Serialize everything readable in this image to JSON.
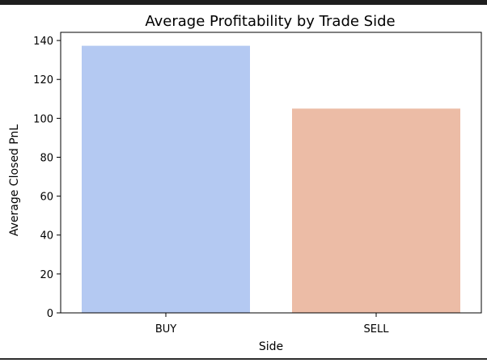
{
  "chart_data": {
    "type": "bar",
    "title": "Average Profitability by Trade Side",
    "xlabel": "Side",
    "ylabel": "Average Closed PnL",
    "categories": [
      "BUY",
      "SELL"
    ],
    "values": [
      137.3,
      105.0
    ],
    "colors": [
      "#b4c9f2",
      "#ecbca6"
    ],
    "ylim": [
      0,
      144.2
    ],
    "yticks": [
      0,
      20,
      40,
      60,
      80,
      100,
      120,
      140
    ],
    "grid": false,
    "legend": "none"
  }
}
